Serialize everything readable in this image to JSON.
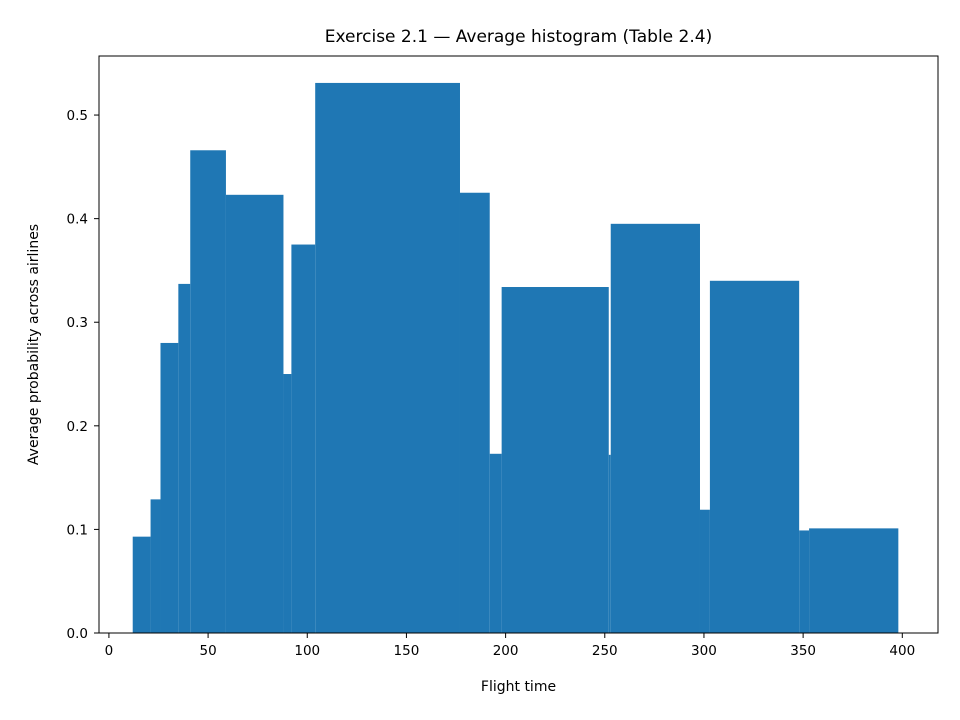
{
  "chart_data": {
    "type": "bar",
    "title": "Exercise 2.1 — Average histogram (Table 2.4)",
    "xlabel": "Flight time",
    "ylabel": "Average probability across airlines",
    "xlim": [
      -5,
      418
    ],
    "ylim": [
      0,
      0.557
    ],
    "xticks": [
      0,
      50,
      100,
      150,
      200,
      250,
      300,
      350,
      400
    ],
    "yticks": [
      0.0,
      0.1,
      0.2,
      0.3,
      0.4,
      0.5
    ],
    "ytick_labels": [
      "0.0",
      "0.1",
      "0.2",
      "0.3",
      "0.4",
      "0.5"
    ],
    "grid": false,
    "color": "#1f77b4",
    "bins": [
      {
        "start": 12,
        "end": 21,
        "value": 0.093
      },
      {
        "start": 21,
        "end": 26,
        "value": 0.129
      },
      {
        "start": 26,
        "end": 35,
        "value": 0.28
      },
      {
        "start": 35,
        "end": 41,
        "value": 0.337
      },
      {
        "start": 41,
        "end": 59,
        "value": 0.466
      },
      {
        "start": 59,
        "end": 88,
        "value": 0.423
      },
      {
        "start": 88,
        "end": 92,
        "value": 0.25
      },
      {
        "start": 92,
        "end": 104,
        "value": 0.375
      },
      {
        "start": 104,
        "end": 177,
        "value": 0.531
      },
      {
        "start": 177,
        "end": 192,
        "value": 0.425
      },
      {
        "start": 192,
        "end": 198,
        "value": 0.173
      },
      {
        "start": 198,
        "end": 252,
        "value": 0.334
      },
      {
        "start": 252,
        "end": 253,
        "value": 0.172
      },
      {
        "start": 253,
        "end": 298,
        "value": 0.395
      },
      {
        "start": 298,
        "end": 303,
        "value": 0.119
      },
      {
        "start": 303,
        "end": 348,
        "value": 0.34
      },
      {
        "start": 348,
        "end": 353,
        "value": 0.099
      },
      {
        "start": 353,
        "end": 398,
        "value": 0.101
      }
    ]
  }
}
